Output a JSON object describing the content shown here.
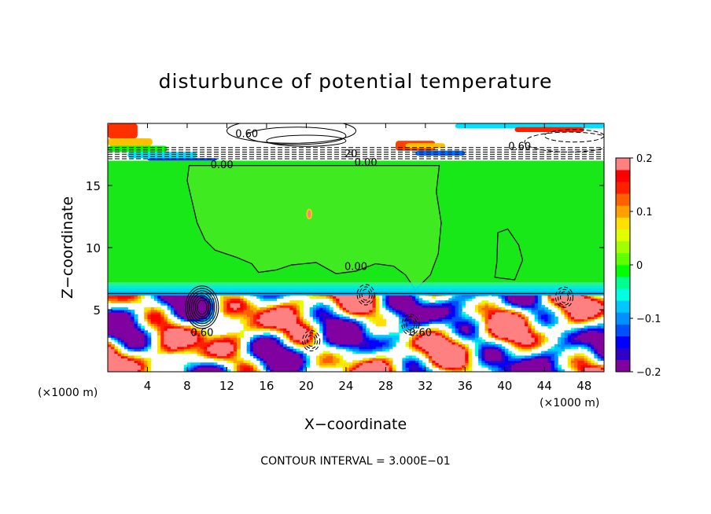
{
  "chart_data": {
    "type": "heatmap",
    "title": "disturbunce of potential temperature",
    "xlabel": "X−coordinate",
    "ylabel": "Z−coordinate",
    "x_unit": "(×1000 m)",
    "x_unit_right": "(×1000 m)",
    "xlim": [
      0,
      50
    ],
    "ylim": [
      0,
      20
    ],
    "x_ticks": [
      4,
      8,
      12,
      16,
      20,
      24,
      28,
      32,
      36,
      40,
      44,
      48
    ],
    "y_ticks": [
      5,
      10,
      15
    ],
    "colorbar": {
      "range": [
        -0.2,
        0.2
      ],
      "tick_values": [
        0.2,
        0.1,
        0,
        -0.1,
        -0.2
      ],
      "tick_labels": [
        "0.2",
        "0.1",
        "0",
        "−0.1",
        "−0.2"
      ],
      "colors": [
        "#8000a0",
        "#3000c8",
        "#0000ff",
        "#0050ff",
        "#0090ff",
        "#00c8ff",
        "#00ffe0",
        "#00ff90",
        "#00ff00",
        "#60ff00",
        "#a0ff00",
        "#e0ff00",
        "#ffe000",
        "#ffa000",
        "#ff6000",
        "#ff2000",
        "#ff0000",
        "#ff8080"
      ]
    },
    "contour_labels": [
      {
        "text": "0.60",
        "x": 14.0,
        "y": 19.2
      },
      {
        "text": "0.00",
        "x": 11.5,
        "y": 16.7
      },
      {
        "text": "0.00",
        "x": 26.0,
        "y": 16.9
      },
      {
        "text": "20",
        "x": 24.5,
        "y": 17.6
      },
      {
        "text": "0.60",
        "x": 41.5,
        "y": 18.2
      },
      {
        "text": "0.00",
        "x": 25.0,
        "y": 8.5
      },
      {
        "text": "0.60",
        "x": 9.5,
        "y": 3.2
      },
      {
        "text": "0.60",
        "x": 31.5,
        "y": 3.2
      }
    ],
    "regions": {
      "stratosphere_band": [
        17,
        20
      ],
      "neutral_layer": [
        6.3,
        17
      ],
      "boundary_layer": [
        0,
        6.3
      ]
    },
    "footer": "CONTOUR INTERVAL = 3.000E−01"
  }
}
